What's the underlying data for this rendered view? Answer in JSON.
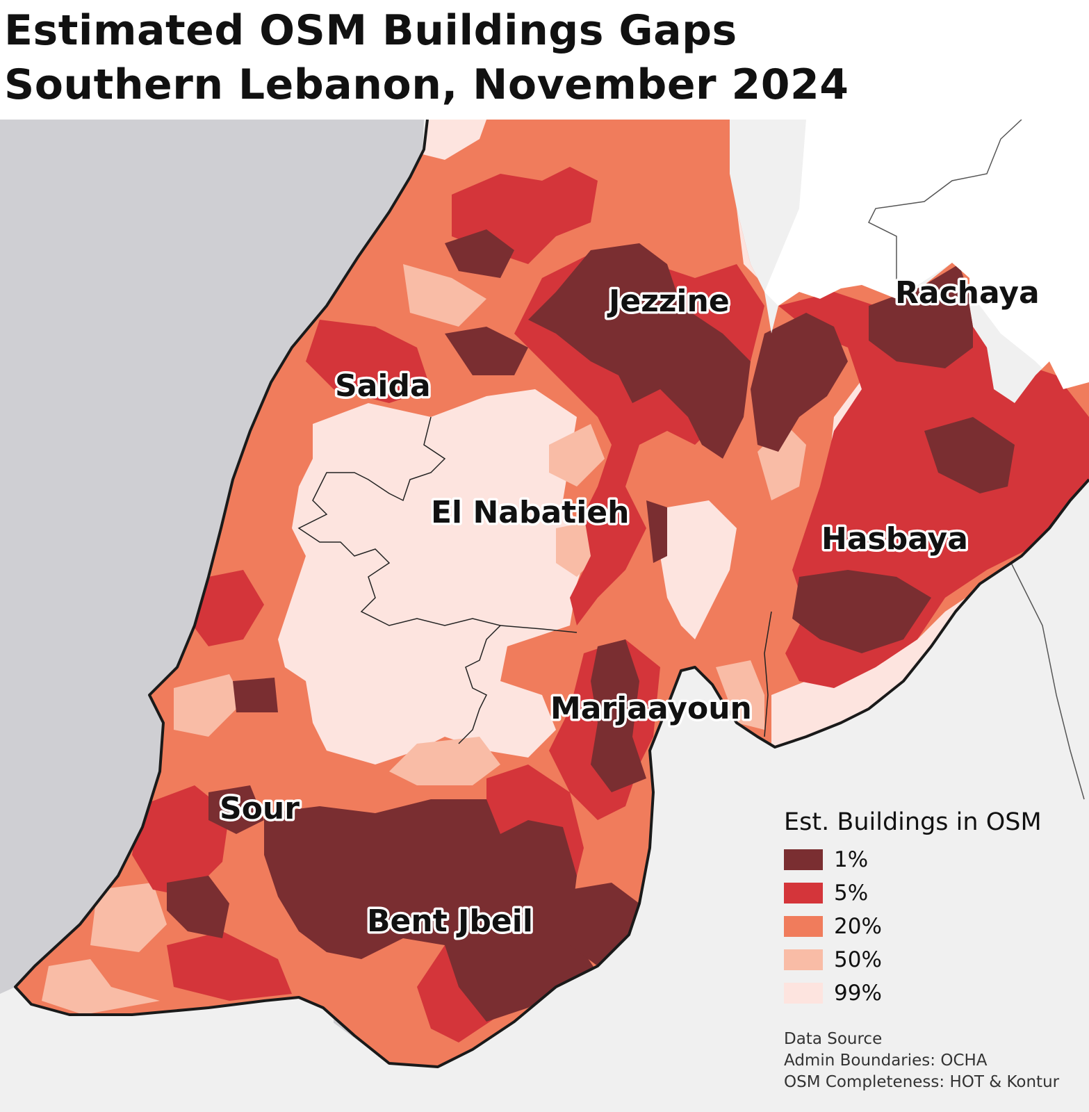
{
  "title": {
    "line1": "Estimated OSM Buildings Gaps",
    "line2": "Southern Lebanon,  November 2024"
  },
  "districts": {
    "rachaya": "Rachaya",
    "jezzine": "Jezzine",
    "saida": "Saida",
    "el_nabatieh": "El Nabatieh",
    "hasbaya": "Hasbaya",
    "marjaayoun": "Marjaayoun",
    "sour": "Sour",
    "bent_jbeil": "Bent Jbeil"
  },
  "legend": {
    "title": "Est. Buildings in OSM",
    "items": [
      {
        "label": "1%",
        "color": "#7a2e31"
      },
      {
        "label": "5%",
        "color": "#d4353a"
      },
      {
        "label": "20%",
        "color": "#f07c5c"
      },
      {
        "label": "50%",
        "color": "#f9bca6"
      },
      {
        "label": "99%",
        "color": "#fde4df"
      }
    ]
  },
  "source": {
    "line1": "Data Source",
    "line2": "Admin Boundaries: OCHA",
    "line3": "OSM Completeness: HOT & Kontur"
  },
  "colors": {
    "sea": "#cfcfd3",
    "outside_land": "#f0f0f0",
    "border": "#1a1a1a"
  }
}
